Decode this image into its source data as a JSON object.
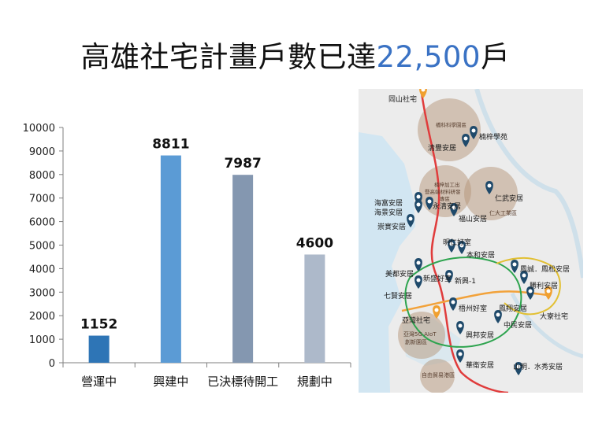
{
  "header": {
    "title_main": "高雄社宅計畫戶數已達",
    "title_number": "22,500",
    "title_suffix": "戶"
  },
  "chart_data": {
    "type": "bar",
    "categories": [
      "營運中",
      "興建中",
      "已決標待開工",
      "規劃中"
    ],
    "values": [
      1152,
      8811,
      7987,
      4600
    ],
    "value_labels": [
      "1152",
      "8811",
      "7987",
      "4600"
    ],
    "colors": [
      "#2e75b6",
      "#5b9bd5",
      "#8497b0",
      "#adb9ca"
    ],
    "ylim": [
      0,
      10000
    ],
    "yticks": [
      "0",
      "1000",
      "2000",
      "3000",
      "4000",
      "5000",
      "6000",
      "7000",
      "8000",
      "9000",
      "10000"
    ],
    "grid": false,
    "title": "",
    "xlabel": "",
    "ylabel": ""
  },
  "map": {
    "colors": {
      "land": "#ececec",
      "sea": "#d2e6f2",
      "zone": "#b6967a",
      "pin_blue": "#1f4a6b",
      "pin_orange": "#f0a030"
    },
    "places": [
      {
        "label": "岡山社宅",
        "pin": "orange"
      },
      {
        "label": "橋科科學園區",
        "pin": "none"
      },
      {
        "label": "楠梓學苑",
        "pin": "blue"
      },
      {
        "label": "清豐安居",
        "pin": "blue"
      },
      {
        "label": "楠梓加工出",
        "pin": "none"
      },
      {
        "label": "暨高端材料研發",
        "pin": "none"
      },
      {
        "label": "專區",
        "pin": "none"
      },
      {
        "label": "仁武安居",
        "pin": "blue"
      },
      {
        "label": "海富安居",
        "pin": "blue"
      },
      {
        "label": "永清安居",
        "pin": "blue"
      },
      {
        "label": "海景安居",
        "pin": "blue"
      },
      {
        "label": "福山安居",
        "pin": "blue"
      },
      {
        "label": "仁大工業區",
        "pin": "none"
      },
      {
        "label": "崇實安居",
        "pin": "blue"
      },
      {
        "label": "明仁好室",
        "pin": "blue"
      },
      {
        "label": "本和安居",
        "pin": "blue"
      },
      {
        "label": "美都安居",
        "pin": "blue"
      },
      {
        "label": "鳳誠．鳳松安居",
        "pin": "blue"
      },
      {
        "label": "新盛好室",
        "pin": "blue"
      },
      {
        "label": "新興-1",
        "pin": "blue"
      },
      {
        "label": "勝利安居",
        "pin": "blue"
      },
      {
        "label": "七賢安居",
        "pin": "blue"
      },
      {
        "label": "梧州好室",
        "pin": "blue"
      },
      {
        "label": "鳳翔安居",
        "pin": "blue"
      },
      {
        "label": "大寮社宅",
        "pin": "orange"
      },
      {
        "label": "亞灣社宅",
        "pin": "orange"
      },
      {
        "label": "中民安居",
        "pin": "blue"
      },
      {
        "label": "亞灣5G AIoT",
        "pin": "none"
      },
      {
        "label": "創新園區",
        "pin": "none"
      },
      {
        "label": "興邦安居",
        "pin": "blue"
      },
      {
        "label": "華衛安居",
        "pin": "blue"
      },
      {
        "label": "自由貿易港區",
        "pin": "none"
      },
      {
        "label": "山明．水秀安居",
        "pin": "blue"
      }
    ]
  }
}
